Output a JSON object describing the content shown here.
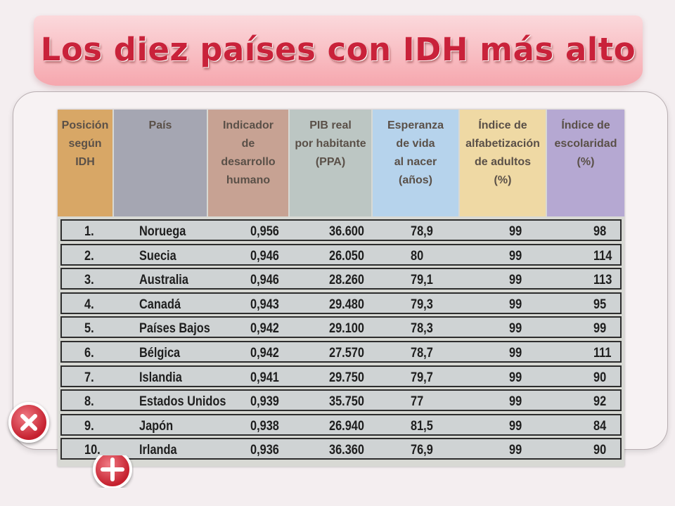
{
  "title": "Los diez países con IDH más alto",
  "colors": {
    "title": "#c9223a",
    "col_posicion": "#d8a766",
    "col_pais": "#a5a6b2",
    "col_indicador": "#c7a293",
    "col_pib": "#bcc6c3",
    "col_esperanza": "#b6d3ec",
    "col_alfabetizacion": "#efd9a4",
    "col_escolaridad": "#b5a8d2"
  },
  "buttons": {
    "delete_icon": "close-icon",
    "add_icon": "plus-icon"
  },
  "chart_data": {
    "type": "table",
    "title": "Los diez países con IDH más alto",
    "columns": [
      {
        "key": "posicion",
        "lines": [
          "Posición",
          "según",
          "IDH"
        ]
      },
      {
        "key": "pais",
        "lines": [
          "País"
        ]
      },
      {
        "key": "indicador",
        "lines": [
          "Indicador",
          "de",
          "desarrollo",
          "humano"
        ]
      },
      {
        "key": "pib",
        "lines": [
          "PIB real",
          "por habitante",
          "(PPA)"
        ]
      },
      {
        "key": "esperanza",
        "lines": [
          "Esperanza",
          "de vida",
          "al nacer",
          "(años)"
        ]
      },
      {
        "key": "alfabetizacion",
        "lines": [
          "Índice de",
          "alfabetización",
          "de adultos",
          "(%)"
        ]
      },
      {
        "key": "escolaridad",
        "lines": [
          "Índice de",
          "escolaridad",
          "(%)"
        ]
      }
    ],
    "rows": [
      [
        "1.",
        "Noruega",
        "0,956",
        "36.600",
        "78,9",
        "99",
        "98"
      ],
      [
        "2.",
        "Suecia",
        "0,946",
        "26.050",
        "80",
        "99",
        "114"
      ],
      [
        "3.",
        "Australia",
        "0,946",
        "28.260",
        "79,1",
        "99",
        "113"
      ],
      [
        "4.",
        "Canadá",
        "0,943",
        "29.480",
        "79,3",
        "99",
        "95"
      ],
      [
        "5.",
        "Países Bajos",
        "0,942",
        "29.100",
        "78,3",
        "99",
        "99"
      ],
      [
        "6.",
        "Bélgica",
        "0,942",
        "27.570",
        "78,7",
        "99",
        "111"
      ],
      [
        "7.",
        "Islandia",
        "0,941",
        "29.750",
        "79,7",
        "99",
        "90"
      ],
      [
        "8.",
        "Estados Unidos",
        "0,939",
        "35.750",
        "77",
        "99",
        "92"
      ],
      [
        "9.",
        "Japón",
        "0,938",
        "26.940",
        "81,5",
        "99",
        "84"
      ],
      [
        "10.",
        "Irlanda",
        "0,936",
        "36.360",
        "76,9",
        "99",
        "90"
      ]
    ]
  }
}
